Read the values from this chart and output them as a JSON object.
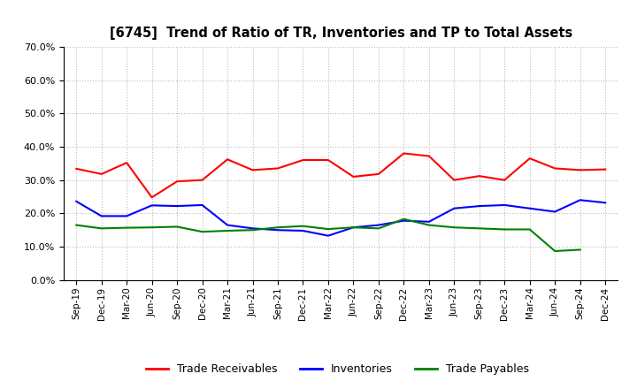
{
  "title": "[6745]  Trend of Ratio of TR, Inventories and TP to Total Assets",
  "x_labels": [
    "Sep-19",
    "Dec-19",
    "Mar-20",
    "Jun-20",
    "Sep-20",
    "Dec-20",
    "Mar-21",
    "Jun-21",
    "Sep-21",
    "Dec-21",
    "Mar-22",
    "Jun-22",
    "Sep-22",
    "Dec-22",
    "Mar-23",
    "Jun-23",
    "Sep-23",
    "Dec-23",
    "Mar-24",
    "Jun-24",
    "Sep-24",
    "Dec-24"
  ],
  "trade_receivables": [
    0.334,
    0.318,
    0.352,
    0.248,
    0.296,
    0.3,
    0.362,
    0.33,
    0.335,
    0.36,
    0.36,
    0.31,
    0.318,
    0.38,
    0.372,
    0.3,
    0.312,
    0.3,
    0.365,
    0.335,
    0.33,
    0.332
  ],
  "inventories": [
    0.236,
    0.192,
    0.192,
    0.224,
    0.222,
    0.225,
    0.165,
    0.155,
    0.15,
    0.148,
    0.133,
    0.158,
    0.165,
    0.178,
    0.175,
    0.215,
    0.222,
    0.225,
    0.215,
    0.205,
    0.24,
    0.232
  ],
  "trade_payables": [
    0.165,
    0.155,
    0.157,
    0.158,
    0.16,
    0.145,
    0.148,
    0.15,
    0.158,
    0.162,
    0.153,
    0.158,
    0.155,
    0.183,
    0.165,
    0.158,
    0.155,
    0.152,
    0.152,
    0.087,
    0.091,
    null
  ],
  "tr_color": "#ff0000",
  "inv_color": "#0000ff",
  "tp_color": "#008000",
  "ylim": [
    0.0,
    0.7
  ],
  "yticks": [
    0.0,
    0.1,
    0.2,
    0.3,
    0.4,
    0.5,
    0.6,
    0.7
  ],
  "background_color": "#ffffff",
  "grid_color": "#bbbbbb",
  "legend_labels": [
    "Trade Receivables",
    "Inventories",
    "Trade Payables"
  ]
}
